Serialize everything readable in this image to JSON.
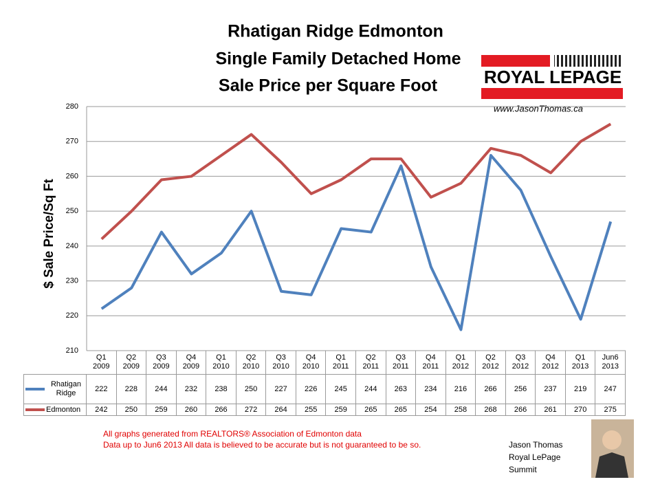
{
  "chart_data": {
    "type": "line",
    "title": [
      "Rhatigan Ridge Edmonton",
      "Single Family Detached Home",
      "Sale Price per Square Foot"
    ],
    "y_label": "$ Sale Price/Sq Ft",
    "categories": [
      "Q1 2009",
      "Q2 2009",
      "Q3 2009",
      "Q4 2009",
      "Q1 2010",
      "Q2 2010",
      "Q3 2010",
      "Q4 2010",
      "Q1 2011",
      "Q2 2011",
      "Q3 2011",
      "Q4 2011",
      "Q1 2012",
      "Q2 2012",
      "Q3 2012",
      "Q4 2012",
      "Q1 2013",
      "Jun6 2013"
    ],
    "series": [
      {
        "name": "Rhatigan Ridge",
        "color": "#4f81bd",
        "values": [
          222,
          228,
          244,
          232,
          238,
          250,
          227,
          226,
          245,
          244,
          263,
          234,
          216,
          266,
          256,
          237,
          219,
          247
        ]
      },
      {
        "name": "Edmonton",
        "color": "#c0504d",
        "values": [
          242,
          250,
          259,
          260,
          266,
          272,
          264,
          255,
          259,
          265,
          265,
          254,
          258,
          268,
          266,
          261,
          270,
          275
        ]
      }
    ],
    "ylim": [
      210,
      280
    ],
    "yticks": [
      210,
      220,
      230,
      240,
      250,
      260,
      270,
      280
    ],
    "grid": true
  },
  "logo": {
    "brand": "ROYAL LEPAGE",
    "url": "www.JasonThomas.ca"
  },
  "notes": [
    "All graphs generated from REALTORS® Association of Edmonton data",
    "Data up to  Jun6 2013  All data is believed to be accurate but is not guaranteed to be so."
  ],
  "agent": [
    "Jason Thomas",
    "Royal LePage",
    "Summit"
  ]
}
